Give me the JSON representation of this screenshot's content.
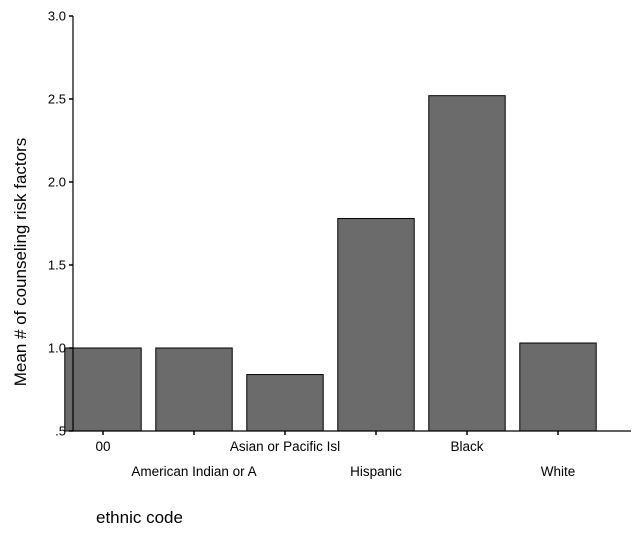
{
  "chart_data": {
    "type": "bar",
    "title": "",
    "xlabel": "ethnic code",
    "ylabel": "Mean # of counseling risk factors",
    "ylim": [
      0.5,
      3.0
    ],
    "yticks": [
      ".5",
      "1.0",
      "1.5",
      "2.0",
      "2.5",
      "3.0"
    ],
    "categories": [
      "00",
      "American Indian or A",
      "Asian or Pacific Isl",
      "Hispanic",
      "Black",
      "White"
    ],
    "values": [
      1.0,
      1.0,
      0.84,
      1.78,
      2.52,
      1.03
    ],
    "bar_color": "#6b6b6b",
    "grid": false
  }
}
